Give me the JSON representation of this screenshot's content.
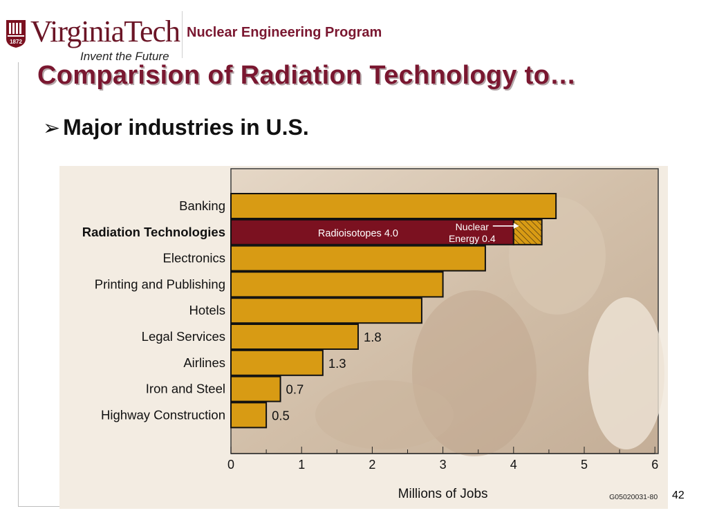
{
  "header": {
    "logo_text": "VirginiaTech",
    "logo_tagline": "Invent the Future",
    "logo_year": "1872",
    "program": "Nuclear Engineering Program"
  },
  "slide": {
    "title": "Comparision of Radiation Technology to…",
    "bullet": "Major  industries in U.S.",
    "number": "42"
  },
  "colors": {
    "bar": "#d89b14",
    "highlight": "#7b1120",
    "title": "#7a1730"
  },
  "chart_data": {
    "type": "bar",
    "orientation": "horizontal",
    "xlabel": "Millions of Jobs",
    "ylabel": "",
    "xlim": [
      0,
      6
    ],
    "x_ticks": [
      "0",
      "1",
      "2",
      "3",
      "4",
      "5",
      "6"
    ],
    "categories": [
      "Banking",
      "Radiation Technologies",
      "Electronics",
      "Printing and Publishing",
      "Hotels",
      "Legal Services",
      "Airlines",
      "Iron and Steel",
      "Highway Construction"
    ],
    "values": [
      4.6,
      4.4,
      3.6,
      3.0,
      2.7,
      1.8,
      1.3,
      0.7,
      0.5
    ],
    "value_labels": [
      "",
      "",
      "",
      "",
      "",
      "1.8",
      "1.3",
      "0.7",
      "0.5"
    ],
    "highlighted_category": "Radiation Technologies",
    "stacked_segments": [
      {
        "category": "Radiation Technologies",
        "label": "Radioisotopes 4.0",
        "value": 4.0
      },
      {
        "category": "Radiation Technologies",
        "label_line1": "Nuclear",
        "label_line2": "Energy 0.4",
        "value": 0.4
      }
    ],
    "code": "G05020031-80"
  }
}
